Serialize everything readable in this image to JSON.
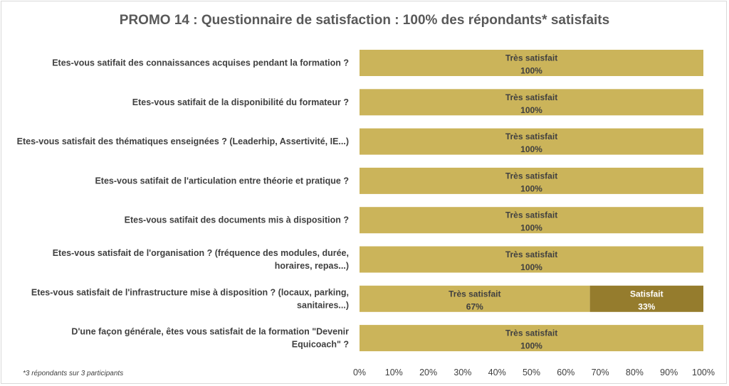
{
  "chart_data": {
    "type": "bar",
    "orientation": "horizontal",
    "stacked": true,
    "title": "PROMO 14 : Questionnaire de satisfaction : 100% des répondants* satisfaits",
    "categories": [
      [
        "Etes-vous satifait des connaissances acquises pendant la formation ?"
      ],
      [
        "Etes-vous satifait de la disponibilité du formateur ?"
      ],
      [
        "Etes-vous satisfait des thématiques enseignées ? (Leaderhip, Assertivité, IE...)"
      ],
      [
        "Etes-vous satifait de l'articulation entre théorie et pratique ?"
      ],
      [
        "Etes-vous satifait des documents mis à disposition ?"
      ],
      [
        "Etes-vous satisfait de l'organisation ? (fréquence des modules, durée,",
        "horaires, repas...)"
      ],
      [
        "Etes-vous satisfait de l'infrastructure mise à disposition ? (locaux, parking,",
        "sanitaires...)"
      ],
      [
        "D'une façon générale, êtes vous satisfait de la formation \"Devenir",
        "Equicoach\" ?"
      ]
    ],
    "series": [
      {
        "name": "Très satisfait",
        "color": "#cbb45a",
        "label_color": "#404040",
        "values": [
          100,
          100,
          100,
          100,
          100,
          100,
          67,
          100
        ],
        "labels": [
          "100%",
          "100%",
          "100%",
          "100%",
          "100%",
          "100%",
          "67%",
          "100%"
        ]
      },
      {
        "name": "Satisfait",
        "color": "#957c2d",
        "label_color": "#ffffff",
        "values": [
          0,
          0,
          0,
          0,
          0,
          0,
          33,
          0
        ],
        "labels": [
          "",
          "",
          "",
          "",
          "",
          "",
          "33%",
          ""
        ]
      }
    ],
    "x_ticks": [
      "0%",
      "10%",
      "20%",
      "30%",
      "40%",
      "50%",
      "60%",
      "70%",
      "80%",
      "90%",
      "100%"
    ],
    "xlim": [
      0,
      100
    ],
    "grid": false,
    "legend": "none",
    "footnote": "*3 répondants sur 3 participants"
  }
}
